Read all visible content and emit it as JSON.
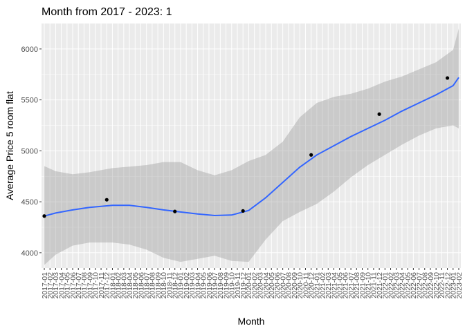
{
  "chart_data": {
    "type": "line",
    "title": "Month from 2017 - 2023: 1",
    "xlabel": "Month",
    "ylabel": "Average Price 5 room flat",
    "categories": [
      "2017-01",
      "2017-02",
      "2017-03",
      "2017-04",
      "2017-05",
      "2017-06",
      "2017-07",
      "2017-08",
      "2017-09",
      "2017-10",
      "2017-11",
      "2017-12",
      "2018-01",
      "2018-02",
      "2018-03",
      "2018-04",
      "2018-05",
      "2018-06",
      "2018-07",
      "2018-08",
      "2018-09",
      "2018-10",
      "2018-11",
      "2018-12",
      "2019-01",
      "2019-02",
      "2019-03",
      "2019-04",
      "2019-05",
      "2019-06",
      "2019-07",
      "2019-08",
      "2019-09",
      "2019-10",
      "2019-11",
      "2019-12",
      "2020-01",
      "2020-02",
      "2020-03",
      "2020-04",
      "2020-05",
      "2020-06",
      "2020-07",
      "2020-08",
      "2020-09",
      "2020-10",
      "2020-11",
      "2020-12",
      "2021-01",
      "2021-02",
      "2021-03",
      "2021-04",
      "2021-05",
      "2021-06",
      "2021-07",
      "2021-08",
      "2021-09",
      "2021-10",
      "2021-11",
      "2021-12",
      "2022-01",
      "2022-02",
      "2022-03",
      "2022-04",
      "2022-05",
      "2022-06",
      "2022-07",
      "2022-08",
      "2022-09",
      "2022-10",
      "2022-11",
      "2022-12",
      "2023-01",
      "2023-02"
    ],
    "ylim": [
      3850,
      6250
    ],
    "yticks": [
      4000,
      4500,
      5000,
      5500,
      6000
    ],
    "grid": true,
    "points": [
      {
        "x": "2017-01",
        "y": 4360
      },
      {
        "x": "2017-12",
        "y": 4520
      },
      {
        "x": "2018-12",
        "y": 4405
      },
      {
        "x": "2019-12",
        "y": 4410
      },
      {
        "x": "2020-12",
        "y": 4960
      },
      {
        "x": "2021-12",
        "y": 5360
      },
      {
        "x": "2022-12",
        "y": 5715
      }
    ],
    "smooth": [
      {
        "x": "2017-01",
        "y": 4360,
        "lo": 3880,
        "hi": 4850
      },
      {
        "x": "2017-03",
        "y": 4390,
        "lo": 3980,
        "hi": 4800
      },
      {
        "x": "2017-06",
        "y": 4420,
        "lo": 4070,
        "hi": 4770
      },
      {
        "x": "2017-09",
        "y": 4445,
        "lo": 4100,
        "hi": 4790
      },
      {
        "x": "2018-01",
        "y": 4465,
        "lo": 4100,
        "hi": 4830
      },
      {
        "x": "2018-04",
        "y": 4465,
        "lo": 4080,
        "hi": 4845
      },
      {
        "x": "2018-07",
        "y": 4445,
        "lo": 4030,
        "hi": 4860
      },
      {
        "x": "2018-10",
        "y": 4420,
        "lo": 3950,
        "hi": 4890
      },
      {
        "x": "2019-01",
        "y": 4400,
        "lo": 3910,
        "hi": 4890
      },
      {
        "x": "2019-04",
        "y": 4380,
        "lo": 3940,
        "hi": 4810
      },
      {
        "x": "2019-07",
        "y": 4365,
        "lo": 3970,
        "hi": 4760
      },
      {
        "x": "2019-10",
        "y": 4370,
        "lo": 3920,
        "hi": 4810
      },
      {
        "x": "2020-01",
        "y": 4415,
        "lo": 3910,
        "hi": 4900
      },
      {
        "x": "2020-04",
        "y": 4540,
        "lo": 4130,
        "hi": 4960
      },
      {
        "x": "2020-07",
        "y": 4690,
        "lo": 4310,
        "hi": 5090
      },
      {
        "x": "2020-10",
        "y": 4840,
        "lo": 4400,
        "hi": 5330
      },
      {
        "x": "2021-01",
        "y": 4960,
        "lo": 4480,
        "hi": 5470
      },
      {
        "x": "2021-04",
        "y": 5050,
        "lo": 4600,
        "hi": 5530
      },
      {
        "x": "2021-07",
        "y": 5140,
        "lo": 4740,
        "hi": 5560
      },
      {
        "x": "2021-10",
        "y": 5220,
        "lo": 4860,
        "hi": 5610
      },
      {
        "x": "2022-01",
        "y": 5300,
        "lo": 4960,
        "hi": 5680
      },
      {
        "x": "2022-04",
        "y": 5390,
        "lo": 5060,
        "hi": 5730
      },
      {
        "x": "2022-07",
        "y": 5470,
        "lo": 5150,
        "hi": 5800
      },
      {
        "x": "2022-10",
        "y": 5550,
        "lo": 5220,
        "hi": 5870
      },
      {
        "x": "2023-01",
        "y": 5640,
        "lo": 5250,
        "hi": 5990
      },
      {
        "x": "2023-02",
        "y": 5720,
        "lo": 5220,
        "hi": 6200
      }
    ]
  }
}
